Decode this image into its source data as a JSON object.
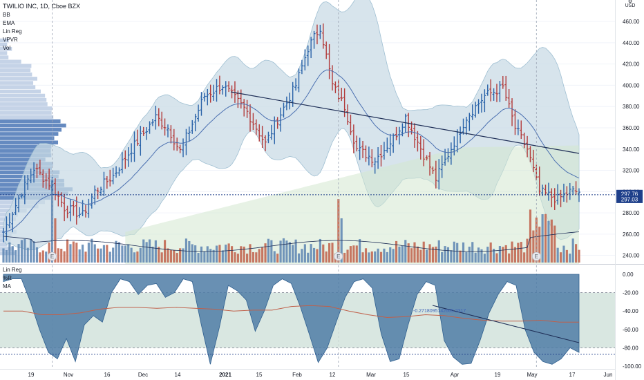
{
  "window": {
    "title": "TWILIO INC, 1D, Cboe BZX"
  },
  "indicators_main": [
    "BB",
    "EMA",
    "Lin Reg",
    "VPVR",
    "Vol"
  ],
  "indicators_lower": [
    "Lin Reg",
    "%R",
    "MA"
  ],
  "currency_label": "USD",
  "price_tags": {
    "upper": "297.76",
    "lower": "297.03"
  },
  "lower_annotation": "-0.2718095142665 2317",
  "earnings_marker": "E",
  "colors": {
    "up_bar": "#2962a8",
    "down_bar": "#b23a3a",
    "bb_fill": "#c9dbe5",
    "vol_up": "#5b84b1",
    "vol_down": "#c0604a",
    "vpvr": "#4a76b5",
    "trendline": "#1f2f57",
    "osc_fill": "#4f7ca6",
    "osc_band": "#cfe1d9",
    "price_tag": "#1e3f8a"
  },
  "chart_data": [
    {
      "type": "ohlc",
      "title": "TWILIO INC, 1D, Cboe BZX",
      "ylabel": "USD",
      "ylim": [
        232,
        475
      ],
      "yticks": [
        240,
        260,
        280,
        300,
        320,
        340,
        360,
        380,
        400,
        420,
        440,
        460
      ],
      "xticks": [
        "19",
        "Nov",
        "16",
        "Dec",
        "14",
        "2021",
        "15",
        "Feb",
        "12",
        "Mar",
        "15",
        "Apr",
        "19",
        "May",
        "17",
        "Jun"
      ],
      "close_path": [
        [
          0,
          262
        ],
        [
          6,
          300
        ],
        [
          10,
          322
        ],
        [
          16,
          305
        ],
        [
          20,
          285
        ],
        [
          26,
          278
        ],
        [
          30,
          300
        ],
        [
          36,
          315
        ],
        [
          42,
          340
        ],
        [
          50,
          370
        ],
        [
          54,
          360
        ],
        [
          58,
          338
        ],
        [
          66,
          390
        ],
        [
          72,
          400
        ],
        [
          80,
          375
        ],
        [
          86,
          345
        ],
        [
          90,
          368
        ],
        [
          96,
          400
        ],
        [
          100,
          435
        ],
        [
          104,
          455
        ],
        [
          108,
          400
        ],
        [
          112,
          380
        ],
        [
          116,
          340
        ],
        [
          122,
          330
        ],
        [
          128,
          350
        ],
        [
          132,
          370
        ],
        [
          138,
          335
        ],
        [
          142,
          312
        ],
        [
          146,
          335
        ],
        [
          152,
          370
        ],
        [
          158,
          390
        ],
        [
          164,
          398
        ],
        [
          168,
          360
        ],
        [
          172,
          340
        ],
        [
          176,
          300
        ],
        [
          182,
          293
        ],
        [
          186,
          300
        ]
      ],
      "earnings_days": [
        16,
        110,
        175
      ],
      "last_close": 297.03,
      "last_price_tag": 297.76
    },
    {
      "type": "area",
      "title": "%R",
      "ylim": [
        -100,
        0
      ],
      "yticks": [
        0,
        -20,
        -40,
        -60,
        -80,
        -100
      ],
      "band": [
        -20,
        -80
      ],
      "values": [
        -8,
        -5,
        -5,
        -30,
        -60,
        -85,
        -92,
        -70,
        -95,
        -55,
        -45,
        -52,
        -20,
        -5,
        -8,
        -22,
        -12,
        -10,
        -25,
        -20,
        -5,
        -8,
        -55,
        -98,
        -58,
        -12,
        -18,
        -28,
        -62,
        -40,
        -12,
        -5,
        -10,
        -35,
        -65,
        -96,
        -80,
        -52,
        -25,
        -8,
        -5,
        -15,
        -65,
        -95,
        -92,
        -55,
        -22,
        -8,
        -12,
        -72,
        -90,
        -98,
        -97,
        -72,
        -42,
        -22,
        -8,
        -12,
        -60,
        -85,
        -95,
        -98,
        -92,
        -80,
        -85
      ],
      "ma_values": [
        -40,
        -40,
        -44,
        -44,
        -42,
        -38,
        -36,
        -36,
        -37,
        -36,
        -37,
        -38,
        -40,
        -39,
        -39,
        -35,
        -34,
        -35,
        -40,
        -44,
        -47,
        -46,
        -44,
        -45,
        -48,
        -50,
        -51,
        -51,
        -50,
        -52,
        -52
      ]
    }
  ]
}
